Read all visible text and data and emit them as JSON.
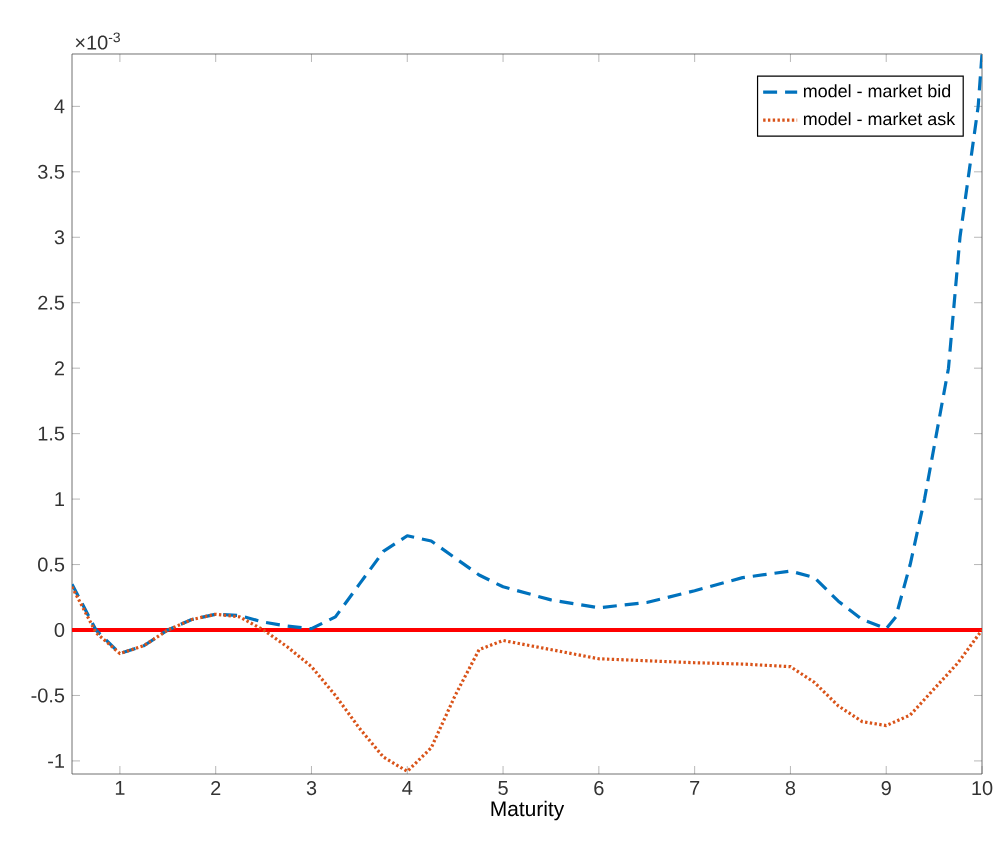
{
  "chart_data": {
    "type": "line",
    "xlabel": "Maturity",
    "annotations": [
      "×10$^{-3}$"
    ],
    "xlim": [
      0.5,
      10
    ],
    "xticks": [
      1,
      2,
      3,
      4,
      5,
      6,
      7,
      8,
      9,
      10
    ],
    "ylim": [
      -1.1,
      4.4
    ],
    "yticks": [
      -1,
      -0.5,
      0,
      0.5,
      1,
      1.5,
      2,
      2.5,
      3,
      3.5,
      4
    ],
    "legend": "top right",
    "grid": false,
    "marker": "none",
    "ref_lines": [
      {
        "axis": "y",
        "value": 0,
        "color": "#ff0000",
        "line_style": "solid"
      }
    ],
    "series": [
      {
        "name": "model -  market bid",
        "color": "#0072bd",
        "line_style": "dashed",
        "x": [
          0.5,
          0.75,
          1,
          1.25,
          1.5,
          1.75,
          2,
          2.25,
          2.5,
          2.75,
          3,
          3.25,
          3.5,
          3.75,
          4,
          4.25,
          4.5,
          4.75,
          5,
          5.5,
          6,
          6.5,
          7,
          7.5,
          8,
          8.25,
          8.5,
          8.75,
          9,
          9.1,
          9.25,
          9.4,
          9.65,
          9.77,
          9.96,
          10
        ],
        "values": [
          0.35,
          0.0,
          -0.18,
          -0.12,
          0.0,
          0.08,
          0.12,
          0.11,
          0.06,
          0.03,
          0.01,
          0.1,
          0.35,
          0.6,
          0.72,
          0.68,
          0.55,
          0.42,
          0.33,
          0.23,
          0.17,
          0.21,
          0.3,
          0.4,
          0.45,
          0.4,
          0.22,
          0.08,
          0.01,
          0.1,
          0.5,
          1.0,
          2.0,
          3.0,
          4.0,
          4.4
        ]
      },
      {
        "name": "model -  market ask",
        "color": "#d95319",
        "line_style": "dotted",
        "x": [
          0.5,
          0.75,
          1,
          1.25,
          1.5,
          1.75,
          2,
          2.25,
          2.5,
          2.75,
          3,
          3.25,
          3.5,
          3.75,
          4,
          4.25,
          4.5,
          4.75,
          5,
          5.5,
          6,
          7,
          7.5,
          8,
          8.25,
          8.5,
          8.75,
          9,
          9.25,
          9.5,
          9.75,
          10
        ],
        "values": [
          0.33,
          -0.02,
          -0.18,
          -0.12,
          0.0,
          0.08,
          0.12,
          0.1,
          0.0,
          -0.13,
          -0.28,
          -0.5,
          -0.75,
          -0.97,
          -1.08,
          -0.9,
          -0.5,
          -0.15,
          -0.08,
          -0.15,
          -0.22,
          -0.25,
          -0.26,
          -0.28,
          -0.4,
          -0.58,
          -0.7,
          -0.73,
          -0.65,
          -0.45,
          -0.25,
          0.0
        ]
      }
    ]
  }
}
